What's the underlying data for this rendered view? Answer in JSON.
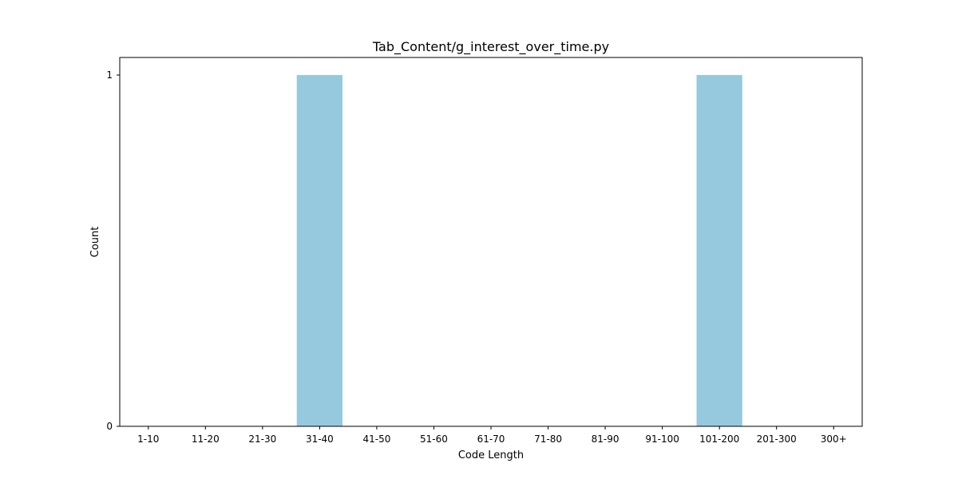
{
  "chart_data": {
    "type": "bar",
    "title": "Tab_Content/g_interest_over_time.py",
    "xlabel": "Code Length",
    "ylabel": "Count",
    "categories": [
      "1-10",
      "11-20",
      "21-30",
      "31-40",
      "41-50",
      "51-60",
      "61-70",
      "71-80",
      "81-90",
      "91-100",
      "101-200",
      "201-300",
      "300+"
    ],
    "values": [
      0,
      0,
      0,
      1,
      0,
      0,
      0,
      0,
      0,
      0,
      1,
      0,
      0
    ],
    "y_ticks": [
      0,
      1
    ],
    "ylim": [
      0,
      1.05
    ],
    "grid": false,
    "legend": "none",
    "colors": {
      "bar": "#96c9de",
      "axis": "#000000",
      "background": "#ffffff"
    }
  }
}
